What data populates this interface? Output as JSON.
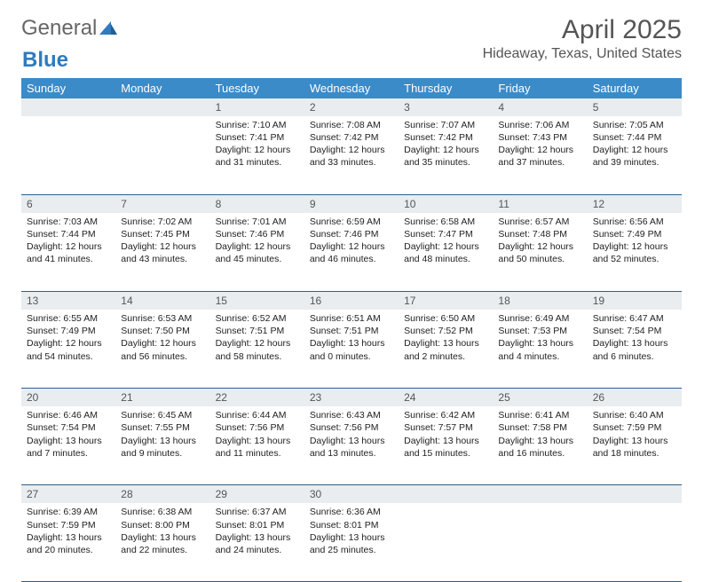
{
  "logo": {
    "text1": "General",
    "text2": "Blue"
  },
  "title": "April 2025",
  "location": "Hideaway, Texas, United States",
  "colors": {
    "header_bg": "#3b8bc9",
    "header_text": "#ffffff",
    "daynum_bg": "#e9edf0",
    "row_border": "#2f5f88",
    "title_color": "#555555",
    "logo_blue": "#2f7bbf",
    "body_text": "#222222"
  },
  "day_headers": [
    "Sunday",
    "Monday",
    "Tuesday",
    "Wednesday",
    "Thursday",
    "Friday",
    "Saturday"
  ],
  "weeks": [
    {
      "nums": [
        "",
        "",
        "1",
        "2",
        "3",
        "4",
        "5"
      ],
      "cells": [
        null,
        null,
        {
          "sunrise": "Sunrise: 7:10 AM",
          "sunset": "Sunset: 7:41 PM",
          "day1": "Daylight: 12 hours",
          "day2": "and 31 minutes."
        },
        {
          "sunrise": "Sunrise: 7:08 AM",
          "sunset": "Sunset: 7:42 PM",
          "day1": "Daylight: 12 hours",
          "day2": "and 33 minutes."
        },
        {
          "sunrise": "Sunrise: 7:07 AM",
          "sunset": "Sunset: 7:42 PM",
          "day1": "Daylight: 12 hours",
          "day2": "and 35 minutes."
        },
        {
          "sunrise": "Sunrise: 7:06 AM",
          "sunset": "Sunset: 7:43 PM",
          "day1": "Daylight: 12 hours",
          "day2": "and 37 minutes."
        },
        {
          "sunrise": "Sunrise: 7:05 AM",
          "sunset": "Sunset: 7:44 PM",
          "day1": "Daylight: 12 hours",
          "day2": "and 39 minutes."
        }
      ]
    },
    {
      "nums": [
        "6",
        "7",
        "8",
        "9",
        "10",
        "11",
        "12"
      ],
      "cells": [
        {
          "sunrise": "Sunrise: 7:03 AM",
          "sunset": "Sunset: 7:44 PM",
          "day1": "Daylight: 12 hours",
          "day2": "and 41 minutes."
        },
        {
          "sunrise": "Sunrise: 7:02 AM",
          "sunset": "Sunset: 7:45 PM",
          "day1": "Daylight: 12 hours",
          "day2": "and 43 minutes."
        },
        {
          "sunrise": "Sunrise: 7:01 AM",
          "sunset": "Sunset: 7:46 PM",
          "day1": "Daylight: 12 hours",
          "day2": "and 45 minutes."
        },
        {
          "sunrise": "Sunrise: 6:59 AM",
          "sunset": "Sunset: 7:46 PM",
          "day1": "Daylight: 12 hours",
          "day2": "and 46 minutes."
        },
        {
          "sunrise": "Sunrise: 6:58 AM",
          "sunset": "Sunset: 7:47 PM",
          "day1": "Daylight: 12 hours",
          "day2": "and 48 minutes."
        },
        {
          "sunrise": "Sunrise: 6:57 AM",
          "sunset": "Sunset: 7:48 PM",
          "day1": "Daylight: 12 hours",
          "day2": "and 50 minutes."
        },
        {
          "sunrise": "Sunrise: 6:56 AM",
          "sunset": "Sunset: 7:49 PM",
          "day1": "Daylight: 12 hours",
          "day2": "and 52 minutes."
        }
      ]
    },
    {
      "nums": [
        "13",
        "14",
        "15",
        "16",
        "17",
        "18",
        "19"
      ],
      "cells": [
        {
          "sunrise": "Sunrise: 6:55 AM",
          "sunset": "Sunset: 7:49 PM",
          "day1": "Daylight: 12 hours",
          "day2": "and 54 minutes."
        },
        {
          "sunrise": "Sunrise: 6:53 AM",
          "sunset": "Sunset: 7:50 PM",
          "day1": "Daylight: 12 hours",
          "day2": "and 56 minutes."
        },
        {
          "sunrise": "Sunrise: 6:52 AM",
          "sunset": "Sunset: 7:51 PM",
          "day1": "Daylight: 12 hours",
          "day2": "and 58 minutes."
        },
        {
          "sunrise": "Sunrise: 6:51 AM",
          "sunset": "Sunset: 7:51 PM",
          "day1": "Daylight: 13 hours",
          "day2": "and 0 minutes."
        },
        {
          "sunrise": "Sunrise: 6:50 AM",
          "sunset": "Sunset: 7:52 PM",
          "day1": "Daylight: 13 hours",
          "day2": "and 2 minutes."
        },
        {
          "sunrise": "Sunrise: 6:49 AM",
          "sunset": "Sunset: 7:53 PM",
          "day1": "Daylight: 13 hours",
          "day2": "and 4 minutes."
        },
        {
          "sunrise": "Sunrise: 6:47 AM",
          "sunset": "Sunset: 7:54 PM",
          "day1": "Daylight: 13 hours",
          "day2": "and 6 minutes."
        }
      ]
    },
    {
      "nums": [
        "20",
        "21",
        "22",
        "23",
        "24",
        "25",
        "26"
      ],
      "cells": [
        {
          "sunrise": "Sunrise: 6:46 AM",
          "sunset": "Sunset: 7:54 PM",
          "day1": "Daylight: 13 hours",
          "day2": "and 7 minutes."
        },
        {
          "sunrise": "Sunrise: 6:45 AM",
          "sunset": "Sunset: 7:55 PM",
          "day1": "Daylight: 13 hours",
          "day2": "and 9 minutes."
        },
        {
          "sunrise": "Sunrise: 6:44 AM",
          "sunset": "Sunset: 7:56 PM",
          "day1": "Daylight: 13 hours",
          "day2": "and 11 minutes."
        },
        {
          "sunrise": "Sunrise: 6:43 AM",
          "sunset": "Sunset: 7:56 PM",
          "day1": "Daylight: 13 hours",
          "day2": "and 13 minutes."
        },
        {
          "sunrise": "Sunrise: 6:42 AM",
          "sunset": "Sunset: 7:57 PM",
          "day1": "Daylight: 13 hours",
          "day2": "and 15 minutes."
        },
        {
          "sunrise": "Sunrise: 6:41 AM",
          "sunset": "Sunset: 7:58 PM",
          "day1": "Daylight: 13 hours",
          "day2": "and 16 minutes."
        },
        {
          "sunrise": "Sunrise: 6:40 AM",
          "sunset": "Sunset: 7:59 PM",
          "day1": "Daylight: 13 hours",
          "day2": "and 18 minutes."
        }
      ]
    },
    {
      "nums": [
        "27",
        "28",
        "29",
        "30",
        "",
        "",
        ""
      ],
      "cells": [
        {
          "sunrise": "Sunrise: 6:39 AM",
          "sunset": "Sunset: 7:59 PM",
          "day1": "Daylight: 13 hours",
          "day2": "and 20 minutes."
        },
        {
          "sunrise": "Sunrise: 6:38 AM",
          "sunset": "Sunset: 8:00 PM",
          "day1": "Daylight: 13 hours",
          "day2": "and 22 minutes."
        },
        {
          "sunrise": "Sunrise: 6:37 AM",
          "sunset": "Sunset: 8:01 PM",
          "day1": "Daylight: 13 hours",
          "day2": "and 24 minutes."
        },
        {
          "sunrise": "Sunrise: 6:36 AM",
          "sunset": "Sunset: 8:01 PM",
          "day1": "Daylight: 13 hours",
          "day2": "and 25 minutes."
        },
        null,
        null,
        null
      ]
    }
  ]
}
